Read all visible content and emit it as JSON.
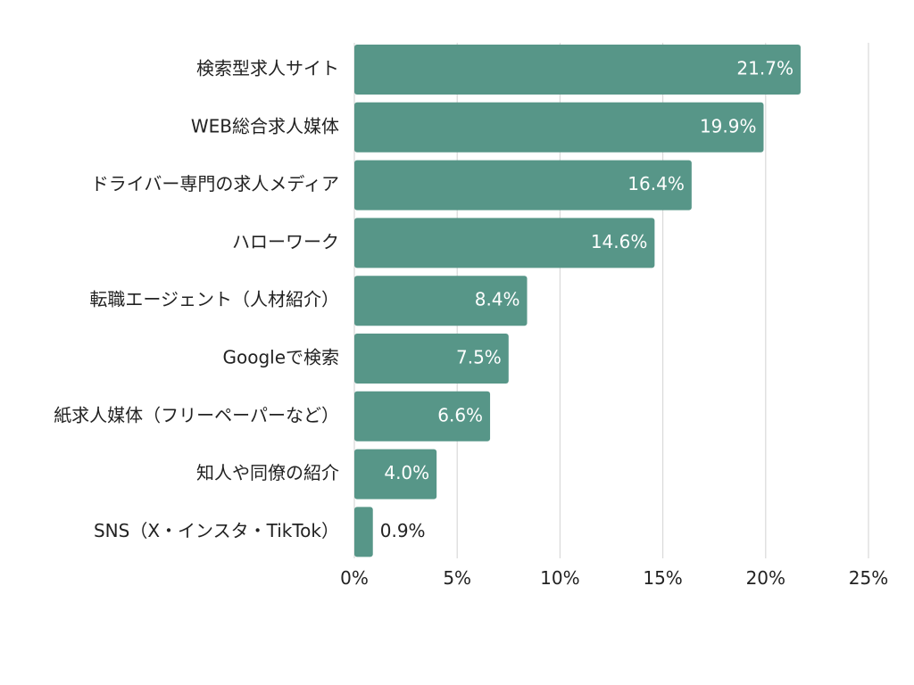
{
  "chart_data": {
    "type": "bar",
    "orientation": "horizontal",
    "title": "",
    "xlabel": "",
    "ylabel": "",
    "categories": [
      "検索型求人サイト",
      "WEB総合求人媒体",
      "ドライバー専門の求人メディア",
      "ハローワーク",
      "転職エージェント（人材紹介）",
      "Googleで検索",
      "紙求人媒体（フリーペーパーなど）",
      "知人や同僚の紹介",
      "SNS（X・インスタ・TikTok）"
    ],
    "values": [
      21.7,
      19.9,
      16.4,
      14.6,
      8.4,
      7.5,
      6.6,
      4.0,
      0.9
    ],
    "value_labels": [
      "21.7%",
      "19.9%",
      "16.4%",
      "14.6%",
      "8.4%",
      "7.5%",
      "6.6%",
      "4.0%",
      "0.9%"
    ],
    "xlim": [
      0,
      25
    ],
    "xticks": [
      0,
      5,
      10,
      15,
      20,
      25
    ],
    "xtick_labels": [
      "0%",
      "5%",
      "10%",
      "15%",
      "20%",
      "25%"
    ],
    "grid": true,
    "legend": "none",
    "colors": {
      "bar": "#579688",
      "label_inside": "#ffffff",
      "label_outside": "#222222",
      "grid": "#d9d9d9"
    }
  }
}
